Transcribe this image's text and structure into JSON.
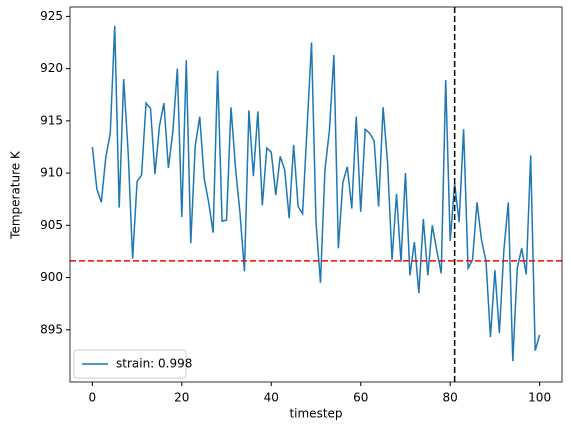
{
  "chart_data": {
    "type": "line",
    "xlabel": "timestep",
    "ylabel": "Temperature K",
    "x": [
      0,
      1,
      2,
      3,
      4,
      5,
      6,
      7,
      8,
      9,
      10,
      11,
      12,
      13,
      14,
      15,
      16,
      17,
      18,
      19,
      20,
      21,
      22,
      23,
      24,
      25,
      26,
      27,
      28,
      29,
      30,
      31,
      32,
      33,
      34,
      35,
      36,
      37,
      38,
      39,
      40,
      41,
      42,
      43,
      44,
      45,
      46,
      47,
      48,
      49,
      50,
      51,
      52,
      53,
      54,
      55,
      56,
      57,
      58,
      59,
      60,
      61,
      62,
      63,
      64,
      65,
      66,
      67,
      68,
      69,
      70,
      71,
      72,
      73,
      74,
      75,
      76,
      77,
      78,
      79,
      80,
      81,
      82,
      83,
      84,
      85,
      86,
      87,
      88,
      89,
      90,
      91,
      92,
      93,
      94,
      95,
      96,
      97,
      98,
      99,
      100
    ],
    "series": [
      {
        "name": "strain: 0.998",
        "color": "#1f77b4",
        "values": [
          912.5,
          908.5,
          907.2,
          911.5,
          913.8,
          924.1,
          906.7,
          919,
          912,
          901.8,
          909.2,
          909.8,
          916.7,
          916.2,
          909.9,
          914.5,
          916.7,
          910.5,
          914,
          920,
          905.8,
          920.8,
          903.3,
          912.6,
          915.4,
          909.5,
          907.2,
          904.3,
          919.8,
          905.4,
          905.5,
          916.3,
          910.5,
          906.2,
          900.6,
          916,
          909.7,
          915.9,
          906.9,
          912.4,
          912,
          907.9,
          911.6,
          910.3,
          905.7,
          912.7,
          906.8,
          906.1,
          914.3,
          922.5,
          905.3,
          899.5,
          910.3,
          914.1,
          921.3,
          902.8,
          909.1,
          910.6,
          906.6,
          915.4,
          906.3,
          914.2,
          913.8,
          913.1,
          906.8,
          916.3,
          911,
          901.7,
          908,
          901.5,
          910,
          900.2,
          903.4,
          898.5,
          905.6,
          900.2,
          905,
          902.6,
          900.4,
          918.9,
          903.5,
          909,
          905.3,
          914.2,
          900.9,
          901.7,
          907.2,
          903.6,
          901.6,
          894.3,
          900.7,
          894.7,
          902.6,
          907.2,
          892,
          900.9,
          902.8,
          900.3,
          911.7,
          893,
          894.5
        ]
      }
    ],
    "hlines": [
      {
        "y": 901.6,
        "color": "#ff0000"
      }
    ],
    "vlines": [
      {
        "x": 81,
        "color": "#000000"
      }
    ],
    "xlim": [
      -5,
      105
    ],
    "ylim": [
      890,
      925.9
    ],
    "xticks": [
      0,
      20,
      40,
      60,
      80,
      100
    ],
    "yticks": [
      895,
      900,
      905,
      910,
      915,
      920,
      925
    ],
    "legend": "lower left"
  }
}
